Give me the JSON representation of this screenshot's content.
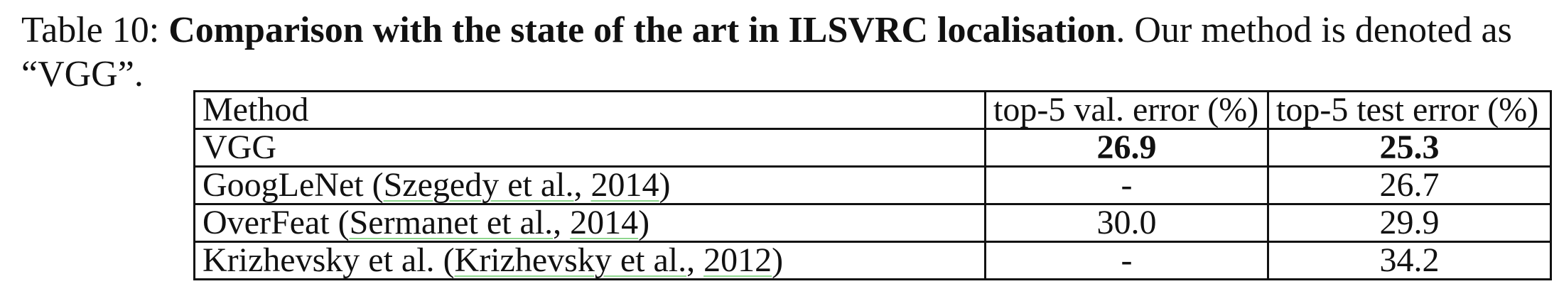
{
  "caption": {
    "label": "Table 10: ",
    "bold_title": "Comparison with the state of the art in ILSVRC localisation",
    "rest": ". Our method is denoted as “VGG”."
  },
  "table": {
    "headers": {
      "method": "Method",
      "val_error": "top-5 val. error (%)",
      "test_error": "top-5 test error (%)"
    },
    "rows": [
      {
        "name": "VGG",
        "cite_open": "",
        "cite_author": "",
        "cite_sep": "",
        "cite_year": "",
        "cite_close": "",
        "val": "26.9",
        "test": "25.3",
        "bold": true
      },
      {
        "name": "GoogLeNet ",
        "cite_open": "(",
        "cite_author": "Szegedy et al.",
        "cite_sep": ", ",
        "cite_year": "2014",
        "cite_close": ")",
        "val": "-",
        "test": "26.7",
        "bold": false
      },
      {
        "name": "OverFeat ",
        "cite_open": "(",
        "cite_author": "Sermanet et al.",
        "cite_sep": ", ",
        "cite_year": "2014",
        "cite_close": ")",
        "val": "30.0",
        "test": "29.9",
        "bold": false
      },
      {
        "name": "Krizhevsky et al. ",
        "cite_open": "(",
        "cite_author": "Krizhevsky et al.",
        "cite_sep": ", ",
        "cite_year": "2012",
        "cite_close": ")",
        "val": "-",
        "test": "34.2",
        "bold": false
      }
    ]
  }
}
